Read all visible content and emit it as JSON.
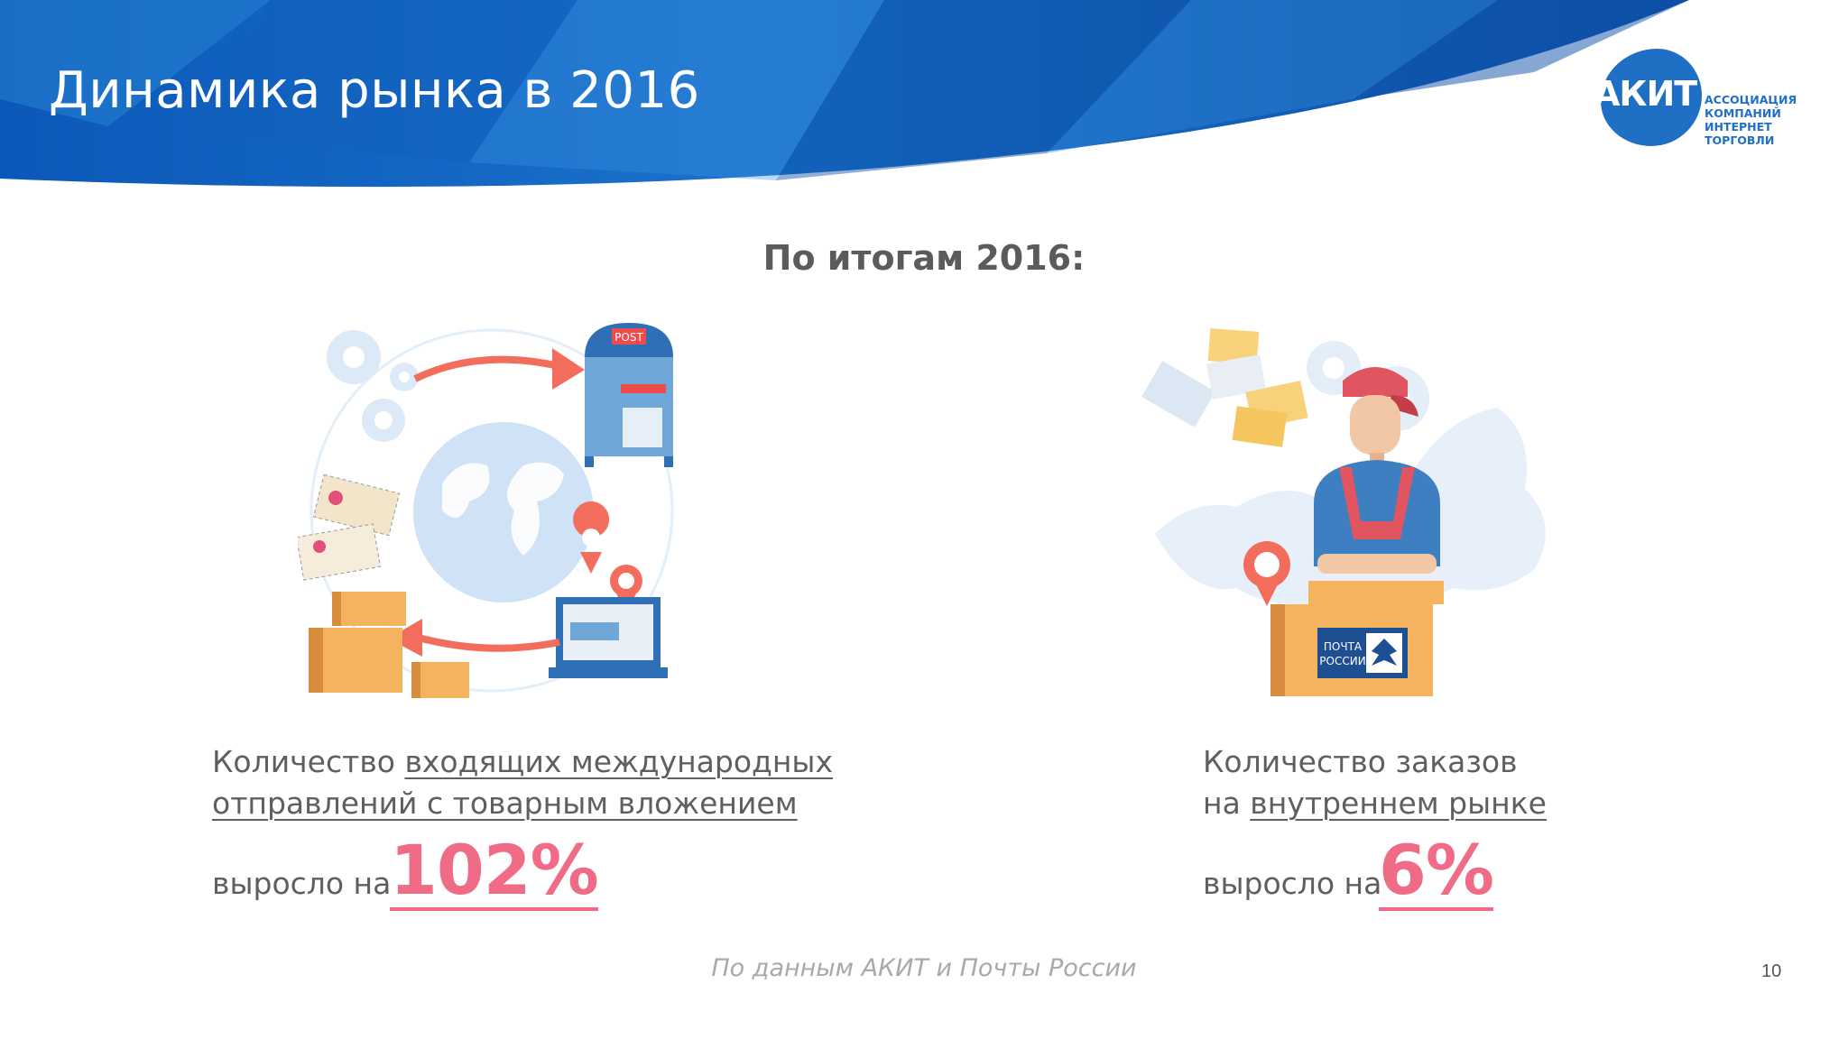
{
  "header": {
    "title": "Динамика рынка в 2016",
    "logo": {
      "mark": "АКИТ",
      "lines": [
        "АССОЦИАЦИЯ",
        "КОМПАНИЙ",
        "ИНТЕРНЕТ",
        "ТОРГОВЛИ"
      ]
    }
  },
  "subtitle": "По итогам 2016:",
  "left": {
    "line1_plain": "Количество ",
    "line1_link": "входящих международных",
    "line2_link": "отправлений с товарным вложением",
    "grow_label": "выросло на",
    "value": "102%",
    "mailbox_sign": "POST"
  },
  "right": {
    "line1": "Количество заказов",
    "line2_plain": "на ",
    "line2_link": "внутреннем рынке",
    "grow_label": "выросло на",
    "value": "6%",
    "box_label_1": "ПОЧТА",
    "box_label_2": "РОССИИ"
  },
  "footer": {
    "source": "По данным АКИТ и Почты России",
    "page_number": "10"
  },
  "colors": {
    "accent": "#f06b86",
    "banner_dark": "#0d4fa8",
    "banner_light": "#2f86d6",
    "text": "#5f5f5f",
    "logo_blue": "#1f6fc4"
  }
}
